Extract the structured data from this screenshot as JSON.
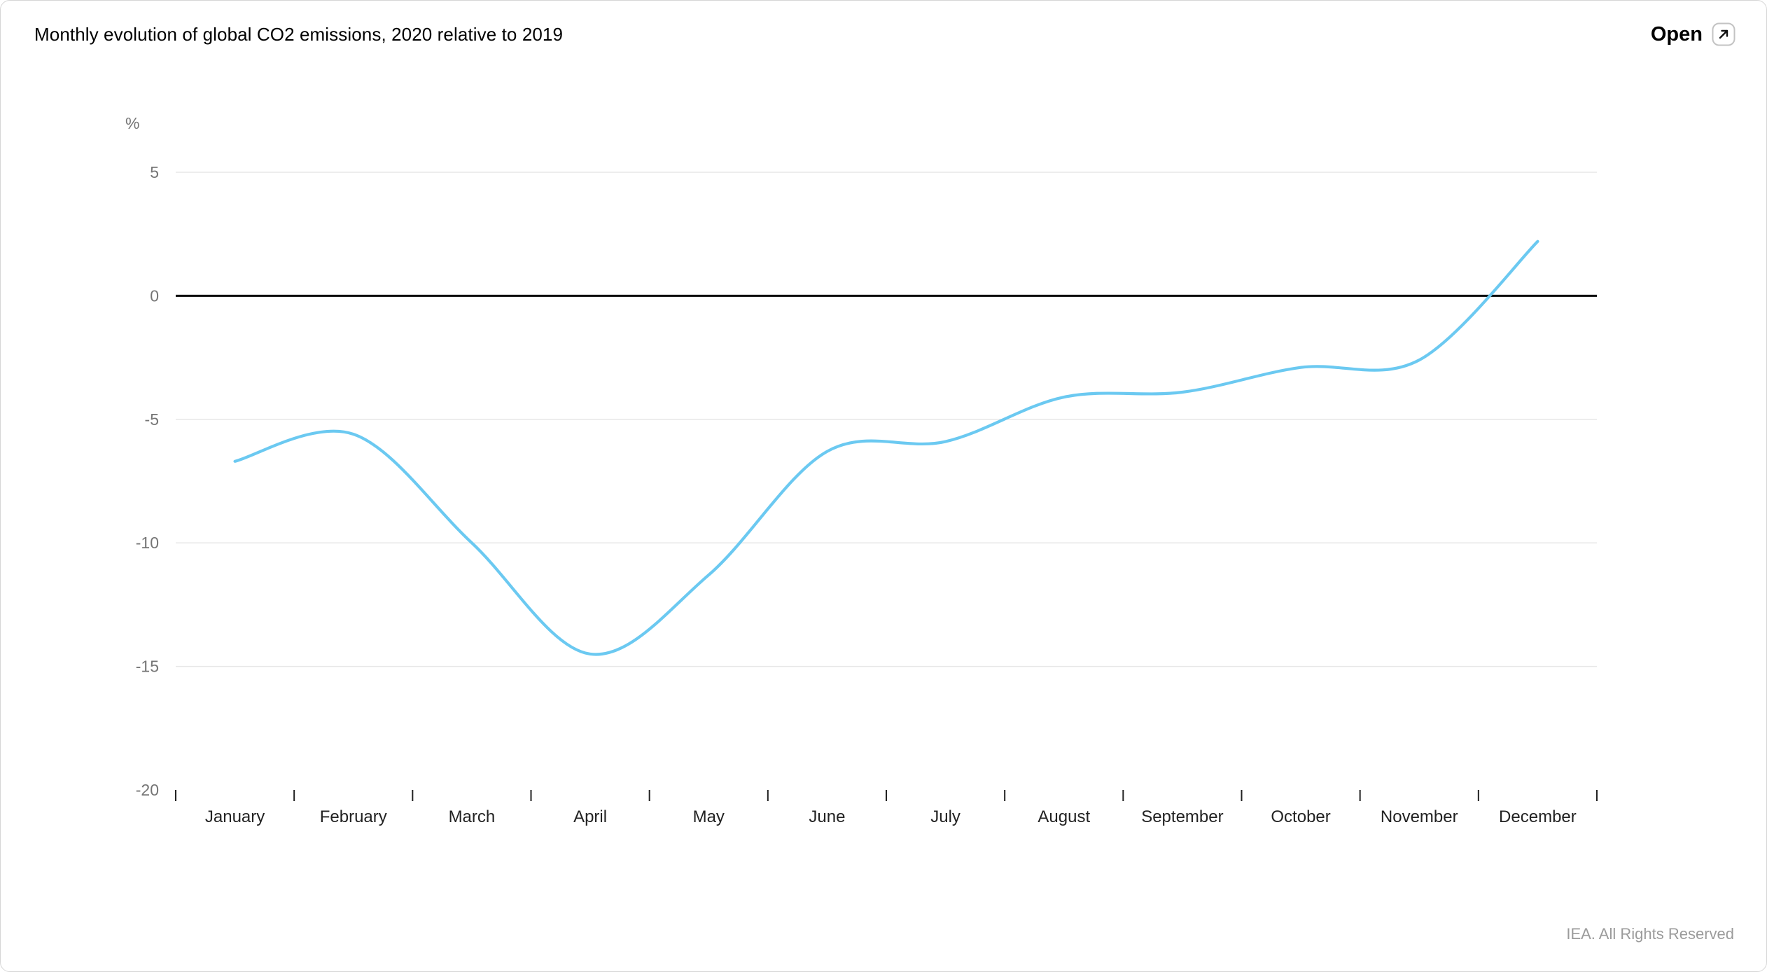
{
  "page": {
    "title": "Monthly evolution of global CO2 emissions, 2020 relative to 2019",
    "open_button": {
      "label": "Open"
    },
    "attribution": "IEA. All Rights Reserved"
  },
  "chart_data": {
    "type": "line",
    "title": "Monthly evolution of global CO2 emissions, 2020 relative to 2019",
    "categories": [
      "January",
      "February",
      "March",
      "April",
      "May",
      "June",
      "July",
      "August",
      "September",
      "October",
      "November",
      "December"
    ],
    "series": [
      {
        "name": "2020 relative to 2019",
        "values": [
          -6.7,
          -5.6,
          -10.0,
          -14.5,
          -11.3,
          -6.3,
          -5.9,
          -4.1,
          -3.9,
          -2.9,
          -2.6,
          2.2
        ]
      }
    ],
    "xlabel": "",
    "ylabel": "%",
    "ylim": [
      -20,
      5
    ],
    "yticks": [
      5,
      0,
      -5,
      -10,
      -15,
      -20
    ],
    "grid": true,
    "zero_line": true,
    "legend_position": "none",
    "colors": {
      "line": "#6bc9f1",
      "zero_line": "#000000",
      "grid": "#e7e7e7",
      "y_tick_label": "#757575",
      "x_tick_label": "#222222",
      "x_tick_mark": "#222222"
    }
  }
}
